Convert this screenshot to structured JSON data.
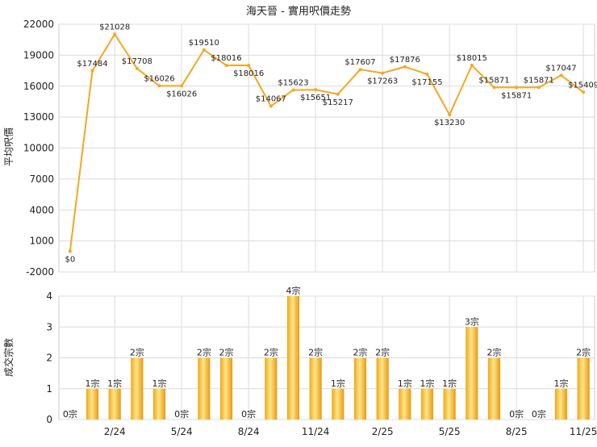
{
  "chart_data": [
    {
      "type": "line",
      "title": "海天晉 - 實用呎價走勢",
      "ylabel": "平均呎價",
      "ylim": [
        -2000,
        22000
      ],
      "yticks": [
        -2000,
        1000,
        4000,
        7000,
        10000,
        13000,
        16000,
        19000,
        22000
      ],
      "grid": true,
      "color": "#f5a623",
      "values": [
        0,
        17484,
        21028,
        17708,
        16026,
        16026,
        19510,
        18016,
        18016,
        14067,
        15623,
        15651,
        15217,
        17607,
        17263,
        17876,
        17155,
        13230,
        18015,
        15871,
        15871,
        15871,
        17047,
        15409
      ],
      "labels": [
        "$0",
        "$17484",
        "$21028",
        "$17708",
        "$16026",
        "$16026",
        "$19510",
        "$18016",
        "$18016",
        "$14067",
        "$15623",
        "$15651",
        "$15217",
        "$17607",
        "$17263",
        "$17876",
        "$17155",
        "$13230",
        "$18015",
        "$15871",
        "$15871",
        "$15871",
        "$17047",
        "$15409"
      ]
    },
    {
      "type": "bar",
      "ylabel": "成交宗數",
      "ylim": [
        0,
        4
      ],
      "yticks": [
        0,
        1,
        2,
        3,
        4
      ],
      "grid": true,
      "color": "#f5a623",
      "values": [
        0,
        1,
        1,
        2,
        1,
        0,
        2,
        2,
        0,
        2,
        4,
        2,
        1,
        2,
        2,
        1,
        1,
        1,
        3,
        2,
        0,
        0,
        1,
        2
      ],
      "labels": [
        "0宗",
        "1宗",
        "1宗",
        "2宗",
        "1宗",
        "0宗",
        "2宗",
        "2宗",
        "0宗",
        "2宗",
        "4宗",
        "2宗",
        "1宗",
        "2宗",
        "2宗",
        "1宗",
        "1宗",
        "1宗",
        "3宗",
        "2宗",
        "0宗",
        "0宗",
        "1宗",
        "2宗"
      ],
      "xticks": [
        {
          "label": "2/24",
          "index": 2
        },
        {
          "label": "5/24",
          "index": 5
        },
        {
          "label": "8/24",
          "index": 8
        },
        {
          "label": "11/24",
          "index": 11
        },
        {
          "label": "2/25",
          "index": 14
        },
        {
          "label": "5/25",
          "index": 17
        },
        {
          "label": "8/25",
          "index": 20
        },
        {
          "label": "11/25",
          "index": 23
        }
      ]
    }
  ]
}
